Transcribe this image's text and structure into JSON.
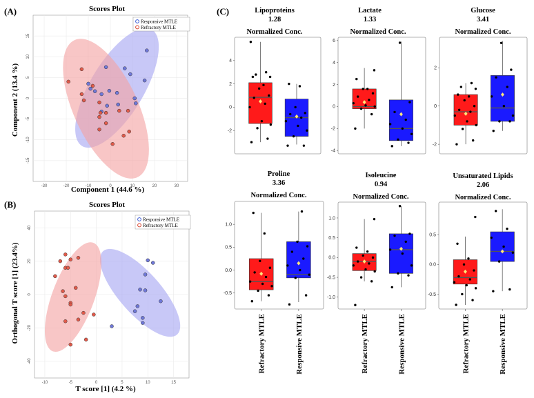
{
  "panel_labels": {
    "a": "(A)",
    "b": "(B)",
    "c": "(C)"
  },
  "colors": {
    "red_fill": "#f4a3a3",
    "blue_fill": "#a6a6f2",
    "red_point": "#e05a4a",
    "blue_point": "#6f78d8",
    "box_red": "#ff1a1a",
    "box_blue": "#1a1aff",
    "median": "#555555",
    "mean": "#ffe67a"
  },
  "chart_data": [
    {
      "id": "A",
      "type": "scatter",
      "title": "Scores Plot",
      "xlabel": "Component 1 (44.6 %)",
      "ylabel": "Component 2 (13.4 %)",
      "xlim": [
        -35,
        35
      ],
      "ylim": [
        -20,
        20
      ],
      "xticks": [
        -30,
        -20,
        -10,
        0,
        10,
        20,
        30
      ],
      "yticks": [
        -15,
        -10,
        -5,
        0,
        5,
        10,
        15
      ],
      "grid": true,
      "legend": [
        "Responsive MTLE",
        "Refractory MTLE"
      ],
      "legend_position": "top-right",
      "series": [
        {
          "name": "Responsive MTLE",
          "color": "blue",
          "points": [
            [
              16.5,
              11.5
            ],
            [
              6.5,
              7.2
            ],
            [
              -2,
              7.5
            ],
            [
              9,
              5.8
            ],
            [
              15.5,
              4.3
            ],
            [
              -10,
              3.5
            ],
            [
              -7,
              1.7
            ],
            [
              -9,
              2.3
            ],
            [
              -4,
              1
            ],
            [
              -0.5,
              1.8
            ],
            [
              3,
              1.3
            ],
            [
              11,
              0
            ],
            [
              11.5,
              -1.2
            ],
            [
              -1.5,
              -1.8
            ],
            [
              3.5,
              -1.5
            ],
            [
              -4,
              -3.2
            ]
          ],
          "ellipse": {
            "cx": 3,
            "cy": 2.5,
            "rx": 22,
            "ry": 9,
            "angle_deg": 34
          }
        },
        {
          "name": "Refractory MTLE",
          "color": "red",
          "points": [
            [
              -13,
              7
            ],
            [
              -19,
              4
            ],
            [
              -8,
              3
            ],
            [
              -13,
              1
            ],
            [
              -12,
              -0.5
            ],
            [
              -5,
              -1
            ],
            [
              -2,
              -3.5
            ],
            [
              -4.5,
              -3.5
            ],
            [
              -5,
              -4.5
            ],
            [
              4,
              -3
            ],
            [
              8,
              -3
            ],
            [
              -2,
              -6
            ],
            [
              8.5,
              -8
            ],
            [
              6,
              -9
            ],
            [
              -5,
              -7.5
            ],
            [
              1,
              -11
            ]
          ],
          "ellipse": {
            "cx": -2,
            "cy": -2.5,
            "rx": 23,
            "ry": 11.5,
            "angle_deg": -38
          }
        }
      ]
    },
    {
      "id": "B",
      "type": "scatter",
      "title": "Scores Plot",
      "xlabel": "T score [1] (4.2 %)",
      "ylabel": "Orthogonal T score [1] (23.4%)",
      "xlim": [
        -12,
        18
      ],
      "ylim": [
        -50,
        50
      ],
      "xticks": [
        -10,
        -5,
        0,
        5,
        10,
        15
      ],
      "yticks": [
        -40,
        -20,
        0,
        20,
        40
      ],
      "grid": true,
      "legend": [
        "Responsive MTLE",
        "Refractory MTLE"
      ],
      "legend_position": "top-right",
      "series": [
        {
          "name": "Responsive MTLE",
          "color": "blue",
          "points": [
            [
              10,
              20.5
            ],
            [
              11,
              19
            ],
            [
              9.5,
              12
            ],
            [
              8.5,
              3
            ],
            [
              9.5,
              2.5
            ],
            [
              12.5,
              -4
            ],
            [
              8,
              -7
            ],
            [
              7.5,
              -10
            ],
            [
              9,
              -14
            ],
            [
              3,
              -19
            ],
            [
              9,
              -17
            ]
          ],
          "ellipse": {
            "cx": 8.5,
            "cy": 1,
            "rx": 5,
            "ry": 27,
            "angle_deg": 13
          }
        },
        {
          "name": "Refractory MTLE",
          "color": "red",
          "points": [
            [
              -6,
              24
            ],
            [
              -7,
              20
            ],
            [
              -5,
              21
            ],
            [
              -3.5,
              22
            ],
            [
              -8,
              11
            ],
            [
              -6,
              16
            ],
            [
              -5.5,
              16
            ],
            [
              -4,
              4
            ],
            [
              -6.5,
              2
            ],
            [
              -6,
              -1
            ],
            [
              -5,
              -5
            ],
            [
              -5,
              -6
            ],
            [
              -2.5,
              -11
            ],
            [
              -6,
              -16
            ],
            [
              -0.5,
              -12
            ],
            [
              -3.5,
              -15
            ],
            [
              -2,
              -27
            ],
            [
              -5,
              -30
            ]
          ],
          "ellipse": {
            "cx": -4.5,
            "cy": -1.5,
            "rx": 4.3,
            "ry": 33,
            "angle_deg": -6
          }
        }
      ]
    },
    {
      "id": "C1",
      "type": "box",
      "title": "Lipoproteins",
      "value": "1.28",
      "subtitle": "Normalized Conc.",
      "ylim": [
        -4,
        6
      ],
      "yticks": [
        -2,
        0,
        2,
        4
      ],
      "groups": [
        {
          "name": "Refractory MTLE",
          "q1": -1.4,
          "median": 0.85,
          "q3": 2.1,
          "lo": -3.0,
          "hi": 5.6,
          "mean": 0.5,
          "points": [
            -3.0,
            -2.7,
            -1.8,
            -1.5,
            -1.2,
            0,
            0.3,
            0.8,
            1.0,
            1.6,
            1.9,
            2.6,
            2.6,
            2.8,
            3.0,
            5.6
          ]
        },
        {
          "name": "Responsive MTLE",
          "q1": -2.5,
          "median": -0.9,
          "q3": 0.7,
          "lo": -3.2,
          "hi": 2.0,
          "mean": -0.8,
          "points": [
            -3.3,
            -3.3,
            -2.5,
            -2.0,
            -1.6,
            -1.2,
            -0.9,
            -0.6,
            -0.5,
            0.0,
            1.8,
            2.0
          ]
        }
      ]
    },
    {
      "id": "C2",
      "type": "box",
      "title": "Lactate",
      "value": "1.33",
      "subtitle": "Normalized Conc.",
      "ylim": [
        -4.3,
        6.3
      ],
      "yticks": [
        -4,
        -2,
        0,
        2,
        4,
        6
      ],
      "groups": [
        {
          "name": "Refractory MTLE",
          "q1": -0.2,
          "median": 0.0,
          "q3": 1.6,
          "lo": -2.0,
          "hi": 3.5,
          "mean": 0.4,
          "points": [
            -2.0,
            -0.7,
            -0.2,
            0,
            0.1,
            0.3,
            0.6,
            0.9,
            1.2,
            1.6,
            1.6,
            2.5,
            3.3
          ]
        },
        {
          "name": "Responsive MTLE",
          "q1": -3.1,
          "median": -2.0,
          "q3": 0.6,
          "lo": -3.6,
          "hi": 5.9,
          "mean": -0.7,
          "points": [
            -3.6,
            -3.3,
            -3.0,
            -2.5,
            -2.0,
            -1.6,
            -1.2,
            -0.5,
            0.4,
            5.8
          ]
        }
      ]
    },
    {
      "id": "C3",
      "type": "box",
      "title": "Glucose",
      "value": "3.41",
      "subtitle": "Normalized Conc.",
      "ylim": [
        -2.5,
        3.6
      ],
      "yticks": [
        -2,
        0,
        2
      ],
      "groups": [
        {
          "name": "Refractory MTLE",
          "q1": -1.0,
          "median": -0.3,
          "q3": 0.6,
          "lo": -2.0,
          "hi": 1.2,
          "mean": -0.4,
          "points": [
            -2.0,
            -1.8,
            -1.2,
            -1.0,
            -0.8,
            -0.5,
            -0.3,
            -0.2,
            0,
            0.3,
            0.5,
            0.6,
            0.9,
            1.0,
            1.2
          ]
        },
        {
          "name": "Responsive MTLE",
          "q1": -0.8,
          "median": -0.1,
          "q3": 1.6,
          "lo": -1.3,
          "hi": 3.4,
          "mean": 0.6,
          "points": [
            -1.3,
            -0.8,
            -0.8,
            -0.5,
            0,
            0.5,
            1.0,
            1.5,
            1.9,
            3.3
          ]
        }
      ]
    },
    {
      "id": "C4",
      "type": "box",
      "title": "Proline",
      "value": "3.36",
      "subtitle": "Normalized Conc.",
      "ylim": [
        -0.85,
        1.5
      ],
      "yticks": [
        -0.5,
        0.0,
        0.5,
        1.0
      ],
      "groups": [
        {
          "name": "Refractory MTLE",
          "q1": -0.43,
          "median": -0.25,
          "q3": 0.25,
          "lo": -0.68,
          "hi": 1.25,
          "mean": -0.08,
          "points": [
            -0.68,
            -0.55,
            -0.45,
            -0.35,
            -0.3,
            -0.25,
            -0.15,
            -0.05,
            0.05,
            0.2,
            0.8,
            1.25
          ]
        },
        {
          "name": "Responsive MTLE",
          "q1": -0.17,
          "median": -0.1,
          "q3": 0.62,
          "lo": -0.7,
          "hi": 1.28,
          "mean": 0.15,
          "points": [
            -0.75,
            -0.55,
            -0.17,
            -0.1,
            0,
            0.1,
            0.25,
            0.4,
            0.52,
            0.62,
            1.28
          ]
        }
      ]
    },
    {
      "id": "C5",
      "type": "box",
      "title": "Isoleucine",
      "value": "0.94",
      "subtitle": "Normalized Conc.",
      "ylim": [
        -1.3,
        1.4
      ],
      "yticks": [
        -1.0,
        -0.5,
        0.0,
        0.5,
        1.0
      ],
      "groups": [
        {
          "name": "Refractory MTLE",
          "q1": -0.33,
          "median": -0.1,
          "q3": 0.1,
          "lo": -0.6,
          "hi": 0.97,
          "mean": -0.1,
          "points": [
            -1.2,
            -0.6,
            -0.5,
            -0.35,
            -0.3,
            -0.2,
            -0.15,
            -0.1,
            0,
            0.05,
            0.15,
            0.25,
            0.97
          ]
        },
        {
          "name": "Responsive MTLE",
          "q1": -0.4,
          "median": 0.2,
          "q3": 0.6,
          "lo": -0.75,
          "hi": 1.3,
          "mean": 0.22,
          "points": [
            -0.75,
            -0.45,
            -0.4,
            -0.2,
            0.1,
            0.2,
            0.4,
            0.55,
            0.6,
            1.3
          ]
        }
      ]
    },
    {
      "id": "C6",
      "type": "box",
      "title": "Unsaturated Lipids",
      "value": "2.06",
      "subtitle": "Normalized Conc.",
      "ylim": [
        -0.75,
        1.05
      ],
      "yticks": [
        -0.5,
        0.0,
        0.5
      ],
      "groups": [
        {
          "name": "Refractory MTLE",
          "q1": -0.33,
          "median": -0.22,
          "q3": 0.08,
          "lo": -0.68,
          "hi": 0.47,
          "mean": -0.12,
          "points": [
            -0.68,
            -0.6,
            -0.5,
            -0.4,
            -0.35,
            -0.3,
            -0.25,
            -0.2,
            -0.1,
            0.0,
            0.1,
            0.35,
            0.8
          ]
        },
        {
          "name": "Responsive MTLE",
          "q1": 0.05,
          "median": 0.22,
          "q3": 0.55,
          "lo": -0.45,
          "hi": 0.93,
          "mean": 0.22,
          "points": [
            -0.45,
            -0.42,
            0.05,
            0.2,
            0.3,
            0.45,
            0.6,
            0.9
          ]
        }
      ]
    }
  ]
}
